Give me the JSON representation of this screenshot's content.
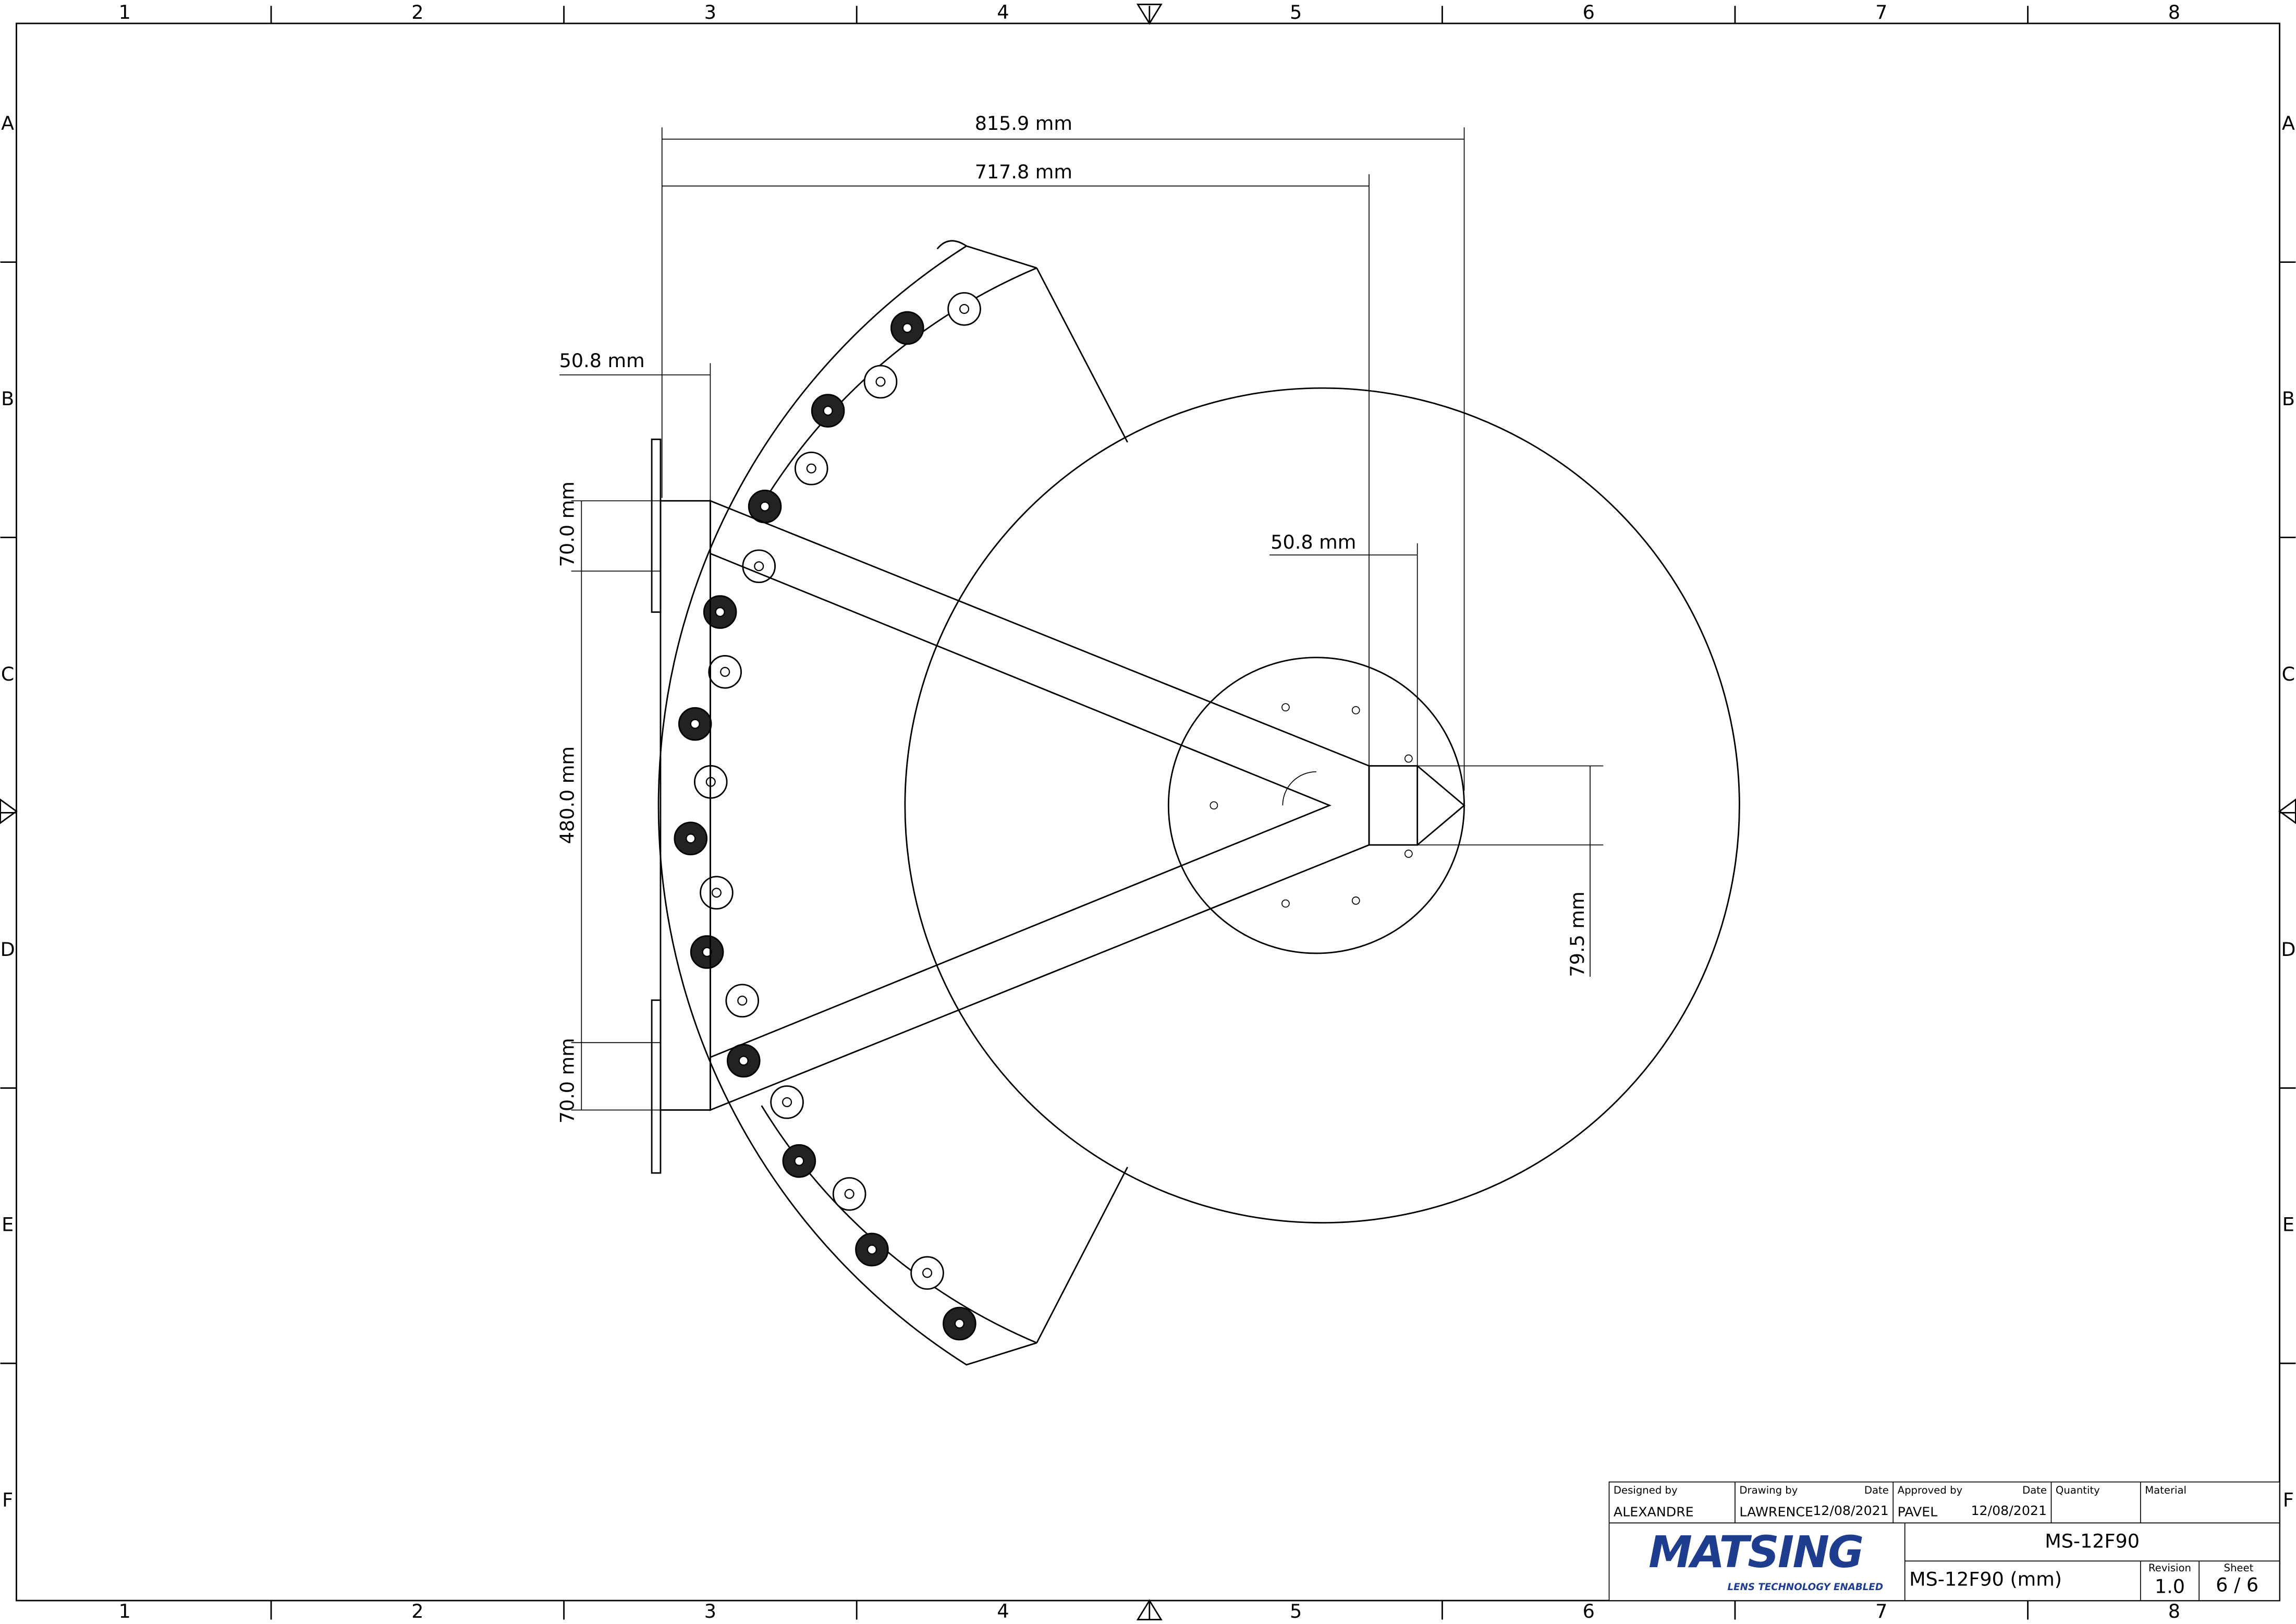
{
  "border": {
    "columns": [
      "1",
      "2",
      "3",
      "4",
      "5",
      "6",
      "7",
      "8"
    ],
    "rows": [
      "A",
      "B",
      "C",
      "D",
      "E",
      "F"
    ]
  },
  "dimensions": {
    "overall_width": "815.9 mm",
    "frame_width": "717.8 mm",
    "bar_width": "50.8 mm",
    "box_width": "50.8 mm",
    "top_offset": "70.0 mm",
    "frame_height": "480.0 mm",
    "bottom_offset": "70.0 mm",
    "box_height": "79.5 mm"
  },
  "title_block": {
    "designed_by_label": "Designed by",
    "designed_by": "ALEXANDRE",
    "drawing_by_label": "Drawing by",
    "drawing_by": "LAWRENCE",
    "date_label": "Date",
    "drawing_date": "12/08/2021",
    "approved_by_label": "Approved by",
    "approved_by": "PAVEL",
    "approved_date": "12/08/2021",
    "quantity_label": "Quantity",
    "material_label": "Material",
    "logo": "MATSING",
    "tagline": "LENS TECHNOLOGY ENABLED",
    "part_number": "MS-12F90",
    "title": "MS-12F90 (mm)",
    "revision_label": "Revision",
    "revision": "1.0",
    "sheet_label": "Sheet",
    "sheet": "6 / 6"
  }
}
